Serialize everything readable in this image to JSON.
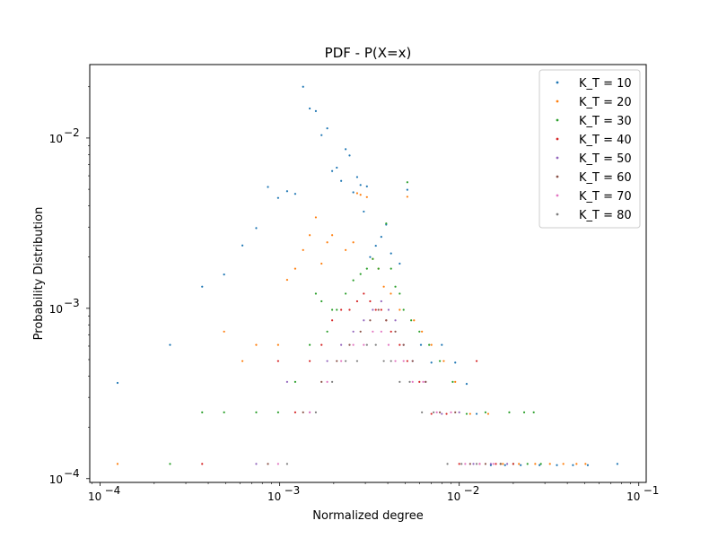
{
  "chart_data": {
    "type": "scatter",
    "title": "PDF - P(X=x)",
    "xlabel": "Normalized degree",
    "ylabel": "Probability Distribution",
    "xscale": "log",
    "yscale": "log",
    "xlim": [
      8.75e-05,
      0.11
    ],
    "ylim": [
      9.5e-05,
      0.027
    ],
    "x_major_ticks": [
      0.0001,
      0.001,
      0.01,
      0.1
    ],
    "x_tick_labels": [
      [
        "10",
        "−4"
      ],
      [
        "10",
        "−3"
      ],
      [
        "10",
        "−2"
      ],
      [
        "10",
        "−1"
      ]
    ],
    "y_major_ticks": [
      0.0001,
      0.001,
      0.01
    ],
    "y_tick_labels": [
      [
        "10",
        "−4"
      ],
      [
        "10",
        "−3"
      ],
      [
        "10",
        "−2"
      ]
    ],
    "grid": false,
    "legend_position": "top-right",
    "series": [
      {
        "name": "K_T = 10",
        "color": "#1f77b4",
        "points": [
          [
            0.000125,
            0.000365
          ],
          [
            0.000245,
            0.00061
          ],
          [
            0.00037,
            0.00134
          ],
          [
            0.00049,
            0.00158
          ],
          [
            0.00062,
            0.00234
          ],
          [
            0.00074,
            0.00296
          ],
          [
            0.00086,
            0.00516
          ],
          [
            0.00098,
            0.00445
          ],
          [
            0.0011,
            0.00487
          ],
          [
            0.00122,
            0.0047
          ],
          [
            0.00135,
            0.02
          ],
          [
            0.00147,
            0.0149
          ],
          [
            0.00159,
            0.0144
          ],
          [
            0.00171,
            0.0104
          ],
          [
            0.00184,
            0.0114
          ],
          [
            0.00196,
            0.0064
          ],
          [
            0.00208,
            0.0067
          ],
          [
            0.0022,
            0.0056
          ],
          [
            0.00233,
            0.0086
          ],
          [
            0.00245,
            0.0079
          ],
          [
            0.00257,
            0.0048
          ],
          [
            0.0027,
            0.0059
          ],
          [
            0.00282,
            0.0053
          ],
          [
            0.00294,
            0.0037
          ],
          [
            0.00306,
            0.0052
          ],
          [
            0.00319,
            0.002
          ],
          [
            0.00343,
            0.00233
          ],
          [
            0.00368,
            0.00263
          ],
          [
            0.00392,
            0.0031
          ],
          [
            0.00417,
            0.0021
          ],
          [
            0.00466,
            0.00183
          ],
          [
            0.00514,
            0.00497
          ],
          [
            0.00612,
            0.00061
          ],
          [
            0.007,
            0.00048
          ],
          [
            0.008,
            0.00061
          ],
          [
            0.0095,
            0.00048
          ],
          [
            0.011,
            0.00036
          ],
          [
            0.0125,
            0.00024
          ],
          [
            0.015,
            0.00012
          ],
          [
            0.018,
            0.00012
          ],
          [
            0.022,
            0.00012
          ],
          [
            0.028,
            0.00012
          ],
          [
            0.035,
            0.00012
          ],
          [
            0.043,
            0.00012
          ],
          [
            0.052,
            0.00012
          ],
          [
            0.076,
            0.000122
          ]
        ]
      },
      {
        "name": "K_T = 20",
        "color": "#ff7f0e",
        "points": [
          [
            0.000125,
            0.000122
          ],
          [
            0.00049,
            0.00073
          ],
          [
            0.00062,
            0.00049
          ],
          [
            0.00074,
            0.00061
          ],
          [
            0.00098,
            0.00061
          ],
          [
            0.0011,
            0.00147
          ],
          [
            0.00122,
            0.00171
          ],
          [
            0.00135,
            0.0022
          ],
          [
            0.00147,
            0.00269
          ],
          [
            0.00159,
            0.00342
          ],
          [
            0.00171,
            0.00183
          ],
          [
            0.00184,
            0.00244
          ],
          [
            0.00196,
            0.00269
          ],
          [
            0.00233,
            0.0022
          ],
          [
            0.00257,
            0.00244
          ],
          [
            0.0027,
            0.00474
          ],
          [
            0.00282,
            0.00464
          ],
          [
            0.00306,
            0.0045
          ],
          [
            0.0033,
            0.00195
          ],
          [
            0.00355,
            0.00171
          ],
          [
            0.0038,
            0.00134
          ],
          [
            0.00416,
            0.00122
          ],
          [
            0.00466,
            0.00098
          ],
          [
            0.00514,
            0.00452
          ],
          [
            0.0056,
            0.00085
          ],
          [
            0.0062,
            0.00073
          ],
          [
            0.007,
            0.00061
          ],
          [
            0.0082,
            0.00049
          ],
          [
            0.0095,
            0.00037
          ],
          [
            0.0115,
            0.00024
          ],
          [
            0.0145,
            0.00024
          ],
          [
            0.0175,
            0.000122
          ],
          [
            0.0215,
            0.000122
          ],
          [
            0.0265,
            0.000122
          ],
          [
            0.032,
            0.000122
          ],
          [
            0.038,
            0.000122
          ],
          [
            0.045,
            0.000122
          ],
          [
            0.0505,
            0.000122
          ]
        ]
      },
      {
        "name": "K_T = 30",
        "color": "#2ca02c",
        "points": [
          [
            0.000245,
            0.000122
          ],
          [
            0.00037,
            0.000245
          ],
          [
            0.00049,
            0.000245
          ],
          [
            0.00074,
            0.000245
          ],
          [
            0.00098,
            0.000245
          ],
          [
            0.00122,
            0.00037
          ],
          [
            0.00147,
            0.00061
          ],
          [
            0.00159,
            0.00122
          ],
          [
            0.00171,
            0.0011
          ],
          [
            0.00184,
            0.00073
          ],
          [
            0.00196,
            0.00098
          ],
          [
            0.00208,
            0.00098
          ],
          [
            0.00233,
            0.00122
          ],
          [
            0.00257,
            0.00146
          ],
          [
            0.00282,
            0.00159
          ],
          [
            0.00306,
            0.00171
          ],
          [
            0.0033,
            0.00195
          ],
          [
            0.00355,
            0.00171
          ],
          [
            0.00392,
            0.00315
          ],
          [
            0.00417,
            0.00171
          ],
          [
            0.00441,
            0.00134
          ],
          [
            0.00466,
            0.00122
          ],
          [
            0.0049,
            0.00098
          ],
          [
            0.00514,
            0.0055
          ],
          [
            0.0054,
            0.00085
          ],
          [
            0.006,
            0.00073
          ],
          [
            0.0068,
            0.00061
          ],
          [
            0.0078,
            0.00049
          ],
          [
            0.0092,
            0.00037
          ],
          [
            0.011,
            0.00024
          ],
          [
            0.014,
            0.000245
          ],
          [
            0.019,
            0.000245
          ],
          [
            0.023,
            0.000245
          ],
          [
            0.026,
            0.000245
          ],
          [
            0.017,
            0.000122
          ],
          [
            0.02,
            0.000122
          ],
          [
            0.024,
            0.000122
          ],
          [
            0.0285,
            0.000122
          ]
        ]
      },
      {
        "name": "K_T = 40",
        "color": "#d62728",
        "points": [
          [
            0.00037,
            0.000122
          ],
          [
            0.00098,
            0.00049
          ],
          [
            0.00122,
            0.000245
          ],
          [
            0.00147,
            0.00049
          ],
          [
            0.00171,
            0.00061
          ],
          [
            0.00196,
            0.00085
          ],
          [
            0.0022,
            0.00098
          ],
          [
            0.00245,
            0.00098
          ],
          [
            0.0027,
            0.0011
          ],
          [
            0.00294,
            0.00122
          ],
          [
            0.00319,
            0.0011
          ],
          [
            0.00343,
            0.00098
          ],
          [
            0.00368,
            0.00098
          ],
          [
            0.00392,
            0.00085
          ],
          [
            0.00417,
            0.00073
          ],
          [
            0.00466,
            0.00061
          ],
          [
            0.00514,
            0.00049
          ],
          [
            0.006,
            0.00037
          ],
          [
            0.007,
            0.00024
          ],
          [
            0.0085,
            0.00024
          ],
          [
            0.01,
            0.000122
          ],
          [
            0.0125,
            0.00049
          ],
          [
            0.013,
            0.000122
          ],
          [
            0.016,
            0.000122
          ],
          [
            0.02,
            0.000122
          ]
        ]
      },
      {
        "name": "K_T = 50",
        "color": "#9467bd",
        "points": [
          [
            0.00074,
            0.000122
          ],
          [
            0.0011,
            0.00037
          ],
          [
            0.00147,
            0.000245
          ],
          [
            0.00184,
            0.00049
          ],
          [
            0.0022,
            0.00061
          ],
          [
            0.00257,
            0.00073
          ],
          [
            0.00294,
            0.00085
          ],
          [
            0.0033,
            0.00098
          ],
          [
            0.00368,
            0.0011
          ],
          [
            0.00404,
            0.00098
          ],
          [
            0.00441,
            0.00085
          ],
          [
            0.0049,
            0.00061
          ],
          [
            0.0055,
            0.00049
          ],
          [
            0.0065,
            0.00037
          ],
          [
            0.008,
            0.00024
          ],
          [
            0.01,
            0.000245
          ],
          [
            0.012,
            0.000122
          ],
          [
            0.015,
            0.000122
          ],
          [
            0.0185,
            0.000122
          ]
        ]
      },
      {
        "name": "K_T = 60",
        "color": "#8c564b",
        "points": [
          [
            0.00086,
            0.000122
          ],
          [
            0.00135,
            0.000245
          ],
          [
            0.00171,
            0.00037
          ],
          [
            0.00208,
            0.00049
          ],
          [
            0.00245,
            0.00061
          ],
          [
            0.00282,
            0.00073
          ],
          [
            0.00319,
            0.00085
          ],
          [
            0.00355,
            0.00098
          ],
          [
            0.00392,
            0.00085
          ],
          [
            0.00441,
            0.00073
          ],
          [
            0.0049,
            0.00061
          ],
          [
            0.0055,
            0.00049
          ],
          [
            0.0065,
            0.00037
          ],
          [
            0.0078,
            0.000245
          ],
          [
            0.0095,
            0.000245
          ],
          [
            0.0115,
            0.000122
          ],
          [
            0.014,
            0.000122
          ],
          [
            0.017,
            0.000122
          ]
        ]
      },
      {
        "name": "K_T = 70",
        "color": "#e377c2",
        "points": [
          [
            0.00098,
            0.000122
          ],
          [
            0.00147,
            0.000245
          ],
          [
            0.00184,
            0.00037
          ],
          [
            0.0022,
            0.00049
          ],
          [
            0.00257,
            0.00061
          ],
          [
            0.00294,
            0.00061
          ],
          [
            0.0033,
            0.00073
          ],
          [
            0.00368,
            0.00073
          ],
          [
            0.00404,
            0.00061
          ],
          [
            0.00441,
            0.00049
          ],
          [
            0.0049,
            0.00049
          ],
          [
            0.0055,
            0.00037
          ],
          [
            0.0063,
            0.00037
          ],
          [
            0.0075,
            0.000245
          ],
          [
            0.009,
            0.000245
          ],
          [
            0.0108,
            0.000122
          ],
          [
            0.013,
            0.000122
          ],
          [
            0.0155,
            0.000122
          ]
        ]
      },
      {
        "name": "K_T = 80",
        "color": "#7f7f7f",
        "points": [
          [
            0.0011,
            0.000122
          ],
          [
            0.00159,
            0.000245
          ],
          [
            0.00196,
            0.00037
          ],
          [
            0.00233,
            0.00049
          ],
          [
            0.0027,
            0.00049
          ],
          [
            0.00306,
            0.00061
          ],
          [
            0.00343,
            0.00061
          ],
          [
            0.0038,
            0.00049
          ],
          [
            0.00417,
            0.00049
          ],
          [
            0.00466,
            0.00037
          ],
          [
            0.0053,
            0.00037
          ],
          [
            0.0062,
            0.000245
          ],
          [
            0.0072,
            0.000245
          ],
          [
            0.0086,
            0.000122
          ],
          [
            0.0103,
            0.000122
          ],
          [
            0.0125,
            0.000122
          ]
        ]
      }
    ]
  }
}
